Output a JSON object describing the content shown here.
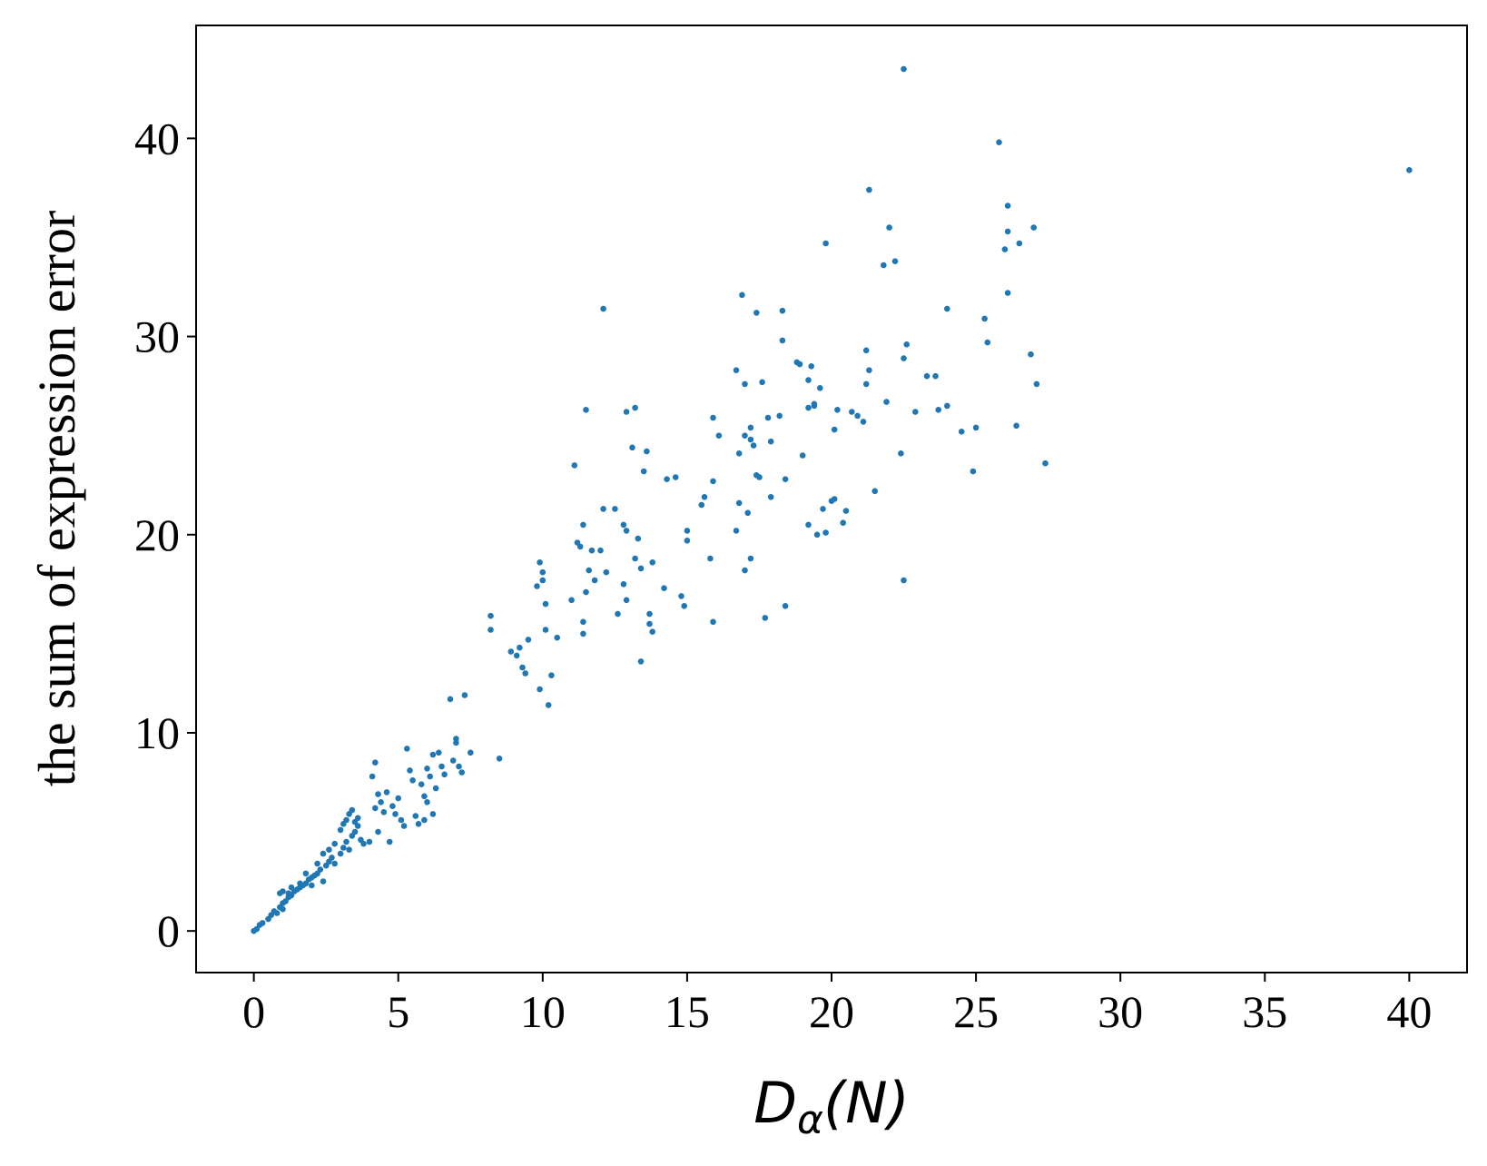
{
  "chart_data": {
    "type": "scatter",
    "xlabel": "D_α(N)",
    "xlabel_main": "D",
    "xlabel_sub": "α",
    "xlabel_arg": "(N)",
    "ylabel": "the sum of expression error",
    "xlim": [
      -2,
      42
    ],
    "ylim": [
      -2.1,
      45.7
    ],
    "xticks": [
      0,
      5,
      10,
      15,
      20,
      25,
      30,
      35,
      40
    ],
    "yticks": [
      0,
      10,
      20,
      30,
      40
    ],
    "grid": false,
    "color": "#1f77b4",
    "points": [
      [
        0.0,
        0.0
      ],
      [
        0.1,
        0.1
      ],
      [
        0.2,
        0.3
      ],
      [
        0.3,
        0.4
      ],
      [
        0.5,
        0.6
      ],
      [
        0.6,
        0.8
      ],
      [
        0.7,
        1.0
      ],
      [
        0.8,
        0.9
      ],
      [
        0.9,
        1.2
      ],
      [
        1.0,
        1.1
      ],
      [
        1.0,
        1.4
      ],
      [
        1.1,
        1.5
      ],
      [
        1.2,
        1.7
      ],
      [
        1.3,
        1.8
      ],
      [
        1.4,
        2.0
      ],
      [
        1.5,
        2.1
      ],
      [
        1.6,
        2.2
      ],
      [
        1.7,
        2.3
      ],
      [
        1.8,
        2.4
      ],
      [
        1.9,
        2.6
      ],
      [
        2.0,
        2.3
      ],
      [
        2.1,
        2.8
      ],
      [
        2.2,
        2.9
      ],
      [
        2.3,
        3.1
      ],
      [
        2.4,
        2.5
      ],
      [
        2.5,
        3.3
      ],
      [
        2.6,
        3.5
      ],
      [
        2.7,
        3.7
      ],
      [
        2.8,
        3.4
      ],
      [
        3.0,
        3.9
      ],
      [
        3.1,
        4.2
      ],
      [
        3.2,
        4.5
      ],
      [
        3.3,
        4.1
      ],
      [
        3.4,
        4.8
      ],
      [
        3.5,
        5.0
      ],
      [
        3.6,
        5.3
      ],
      [
        3.7,
        4.6
      ],
      [
        3.2,
        5.6
      ],
      [
        3.3,
        5.9
      ],
      [
        3.4,
        6.1
      ],
      [
        3.5,
        5.5
      ],
      [
        3.6,
        5.7
      ],
      [
        3.8,
        4.4
      ],
      [
        4.0,
        4.5
      ],
      [
        0.9,
        1.9
      ],
      [
        1.0,
        2.0
      ],
      [
        1.2,
        1.9
      ],
      [
        1.3,
        2.2
      ],
      [
        1.6,
        2.4
      ],
      [
        1.8,
        2.9
      ],
      [
        2.0,
        2.7
      ],
      [
        2.2,
        3.4
      ],
      [
        2.4,
        3.9
      ],
      [
        2.6,
        4.1
      ],
      [
        2.8,
        4.4
      ],
      [
        3.0,
        5.1
      ],
      [
        3.1,
        5.4
      ],
      [
        4.1,
        7.8
      ],
      [
        4.2,
        8.5
      ],
      [
        4.2,
        6.2
      ],
      [
        4.3,
        6.9
      ],
      [
        4.4,
        6.5
      ],
      [
        4.5,
        6.0
      ],
      [
        4.6,
        7.0
      ],
      [
        4.7,
        4.5
      ],
      [
        4.8,
        6.3
      ],
      [
        4.9,
        5.9
      ],
      [
        5.0,
        6.7
      ],
      [
        5.1,
        5.6
      ],
      [
        5.2,
        5.3
      ],
      [
        5.3,
        9.2
      ],
      [
        5.4,
        8.1
      ],
      [
        5.5,
        7.6
      ],
      [
        5.6,
        5.8
      ],
      [
        5.7,
        5.4
      ],
      [
        5.8,
        7.4
      ],
      [
        5.9,
        6.8
      ],
      [
        6.0,
        6.5
      ],
      [
        6.0,
        8.2
      ],
      [
        6.1,
        7.8
      ],
      [
        6.2,
        8.9
      ],
      [
        6.3,
        7.2
      ],
      [
        6.4,
        9.0
      ],
      [
        6.5,
        8.3
      ],
      [
        6.6,
        7.9
      ],
      [
        6.8,
        11.7
      ],
      [
        6.9,
        8.6
      ],
      [
        7.0,
        9.5
      ],
      [
        7.1,
        8.3
      ],
      [
        7.2,
        8.0
      ],
      [
        7.3,
        11.9
      ],
      [
        7.5,
        9.0
      ],
      [
        7.0,
        9.7
      ],
      [
        8.5,
        8.7
      ],
      [
        6.2,
        5.9
      ],
      [
        5.9,
        5.6
      ],
      [
        4.3,
        5.0
      ],
      [
        8.2,
        15.9
      ],
      [
        8.2,
        15.2
      ],
      [
        8.9,
        14.1
      ],
      [
        9.1,
        13.9
      ],
      [
        9.2,
        14.3
      ],
      [
        9.3,
        13.3
      ],
      [
        9.4,
        13.0
      ],
      [
        9.5,
        14.7
      ],
      [
        9.8,
        17.4
      ],
      [
        9.9,
        18.6
      ],
      [
        10.0,
        18.1
      ],
      [
        10.0,
        17.7
      ],
      [
        10.1,
        16.5
      ],
      [
        10.1,
        15.2
      ],
      [
        10.2,
        11.4
      ],
      [
        10.3,
        12.9
      ],
      [
        9.9,
        12.2
      ],
      [
        10.5,
        14.8
      ],
      [
        11.0,
        16.7
      ],
      [
        11.1,
        23.5
      ],
      [
        11.2,
        19.6
      ],
      [
        11.3,
        19.4
      ],
      [
        11.4,
        20.5
      ],
      [
        11.4,
        15.6
      ],
      [
        11.4,
        15.0
      ],
      [
        11.5,
        26.3
      ],
      [
        11.5,
        17.1
      ],
      [
        11.6,
        18.2
      ],
      [
        11.7,
        19.2
      ],
      [
        11.8,
        17.7
      ],
      [
        12.0,
        19.2
      ],
      [
        12.1,
        21.3
      ],
      [
        12.1,
        31.4
      ],
      [
        12.2,
        18.1
      ],
      [
        12.5,
        21.3
      ],
      [
        12.6,
        16.0
      ],
      [
        12.8,
        20.5
      ],
      [
        12.8,
        17.5
      ],
      [
        12.9,
        16.7
      ],
      [
        12.9,
        20.2
      ],
      [
        12.9,
        26.2
      ],
      [
        13.1,
        24.4
      ],
      [
        13.2,
        26.4
      ],
      [
        13.2,
        18.8
      ],
      [
        13.3,
        19.8
      ],
      [
        13.4,
        18.3
      ],
      [
        13.4,
        13.6
      ],
      [
        13.5,
        23.2
      ],
      [
        13.6,
        24.2
      ],
      [
        13.7,
        16.0
      ],
      [
        13.7,
        15.5
      ],
      [
        13.8,
        15.1
      ],
      [
        13.8,
        18.6
      ],
      [
        14.2,
        17.3
      ],
      [
        14.3,
        22.8
      ],
      [
        14.6,
        22.9
      ],
      [
        14.8,
        16.9
      ],
      [
        14.9,
        16.4
      ],
      [
        15.0,
        19.7
      ],
      [
        15.0,
        20.2
      ],
      [
        15.5,
        21.5
      ],
      [
        15.6,
        21.9
      ],
      [
        15.8,
        18.8
      ],
      [
        15.9,
        15.6
      ],
      [
        15.9,
        22.7
      ],
      [
        15.9,
        25.9
      ],
      [
        16.1,
        25.0
      ],
      [
        16.7,
        28.3
      ],
      [
        16.7,
        20.2
      ],
      [
        16.8,
        21.6
      ],
      [
        16.8,
        24.1
      ],
      [
        16.9,
        32.1
      ],
      [
        17.0,
        25.0
      ],
      [
        17.0,
        27.6
      ],
      [
        17.0,
        18.2
      ],
      [
        17.1,
        21.1
      ],
      [
        17.2,
        25.4
      ],
      [
        17.2,
        18.8
      ],
      [
        17.2,
        24.8
      ],
      [
        17.3,
        24.5
      ],
      [
        17.4,
        23.0
      ],
      [
        17.4,
        31.2
      ],
      [
        17.5,
        22.9
      ],
      [
        17.6,
        27.7
      ],
      [
        17.7,
        15.8
      ],
      [
        17.8,
        25.9
      ],
      [
        17.9,
        21.9
      ],
      [
        17.9,
        24.7
      ],
      [
        18.2,
        26.0
      ],
      [
        18.3,
        31.3
      ],
      [
        18.3,
        29.8
      ],
      [
        18.4,
        16.4
      ],
      [
        18.4,
        22.8
      ],
      [
        18.8,
        28.7
      ],
      [
        18.9,
        28.6
      ],
      [
        19.0,
        24.0
      ],
      [
        19.2,
        26.4
      ],
      [
        19.2,
        27.8
      ],
      [
        19.2,
        20.5
      ],
      [
        19.3,
        28.5
      ],
      [
        19.4,
        26.6
      ],
      [
        19.4,
        26.5
      ],
      [
        19.5,
        20.0
      ],
      [
        19.6,
        27.4
      ],
      [
        19.7,
        21.3
      ],
      [
        19.8,
        34.7
      ],
      [
        19.8,
        20.1
      ],
      [
        20.0,
        21.7
      ],
      [
        20.1,
        25.3
      ],
      [
        20.1,
        21.8
      ],
      [
        20.2,
        26.3
      ],
      [
        20.4,
        20.6
      ],
      [
        20.5,
        21.2
      ],
      [
        20.7,
        26.2
      ],
      [
        20.9,
        26.0
      ],
      [
        21.1,
        25.7
      ],
      [
        21.2,
        29.3
      ],
      [
        21.2,
        27.6
      ],
      [
        21.3,
        37.4
      ],
      [
        21.3,
        28.3
      ],
      [
        21.5,
        22.2
      ],
      [
        21.8,
        33.6
      ],
      [
        21.9,
        26.7
      ],
      [
        22.0,
        35.5
      ],
      [
        22.2,
        33.8
      ],
      [
        22.4,
        24.1
      ],
      [
        22.5,
        28.9
      ],
      [
        22.5,
        17.7
      ],
      [
        22.5,
        43.5
      ],
      [
        22.6,
        29.6
      ],
      [
        22.9,
        26.2
      ],
      [
        23.3,
        28.0
      ],
      [
        23.6,
        28.0
      ],
      [
        23.7,
        26.3
      ],
      [
        24.0,
        31.4
      ],
      [
        24.0,
        26.5
      ],
      [
        24.5,
        25.2
      ],
      [
        24.9,
        23.2
      ],
      [
        25.0,
        25.4
      ],
      [
        25.3,
        30.9
      ],
      [
        25.4,
        29.7
      ],
      [
        25.8,
        39.8
      ],
      [
        26.0,
        34.4
      ],
      [
        26.1,
        35.3
      ],
      [
        26.1,
        32.2
      ],
      [
        26.1,
        36.6
      ],
      [
        26.4,
        25.5
      ],
      [
        26.5,
        34.7
      ],
      [
        26.9,
        29.1
      ],
      [
        27.0,
        35.5
      ],
      [
        27.1,
        27.6
      ],
      [
        27.4,
        23.6
      ],
      [
        40.0,
        38.4
      ]
    ]
  }
}
